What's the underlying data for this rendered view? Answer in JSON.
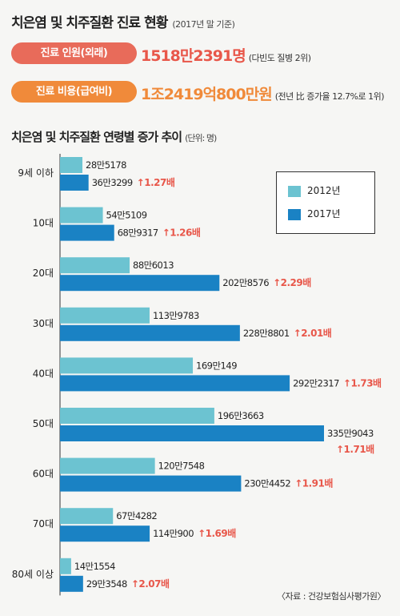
{
  "header": {
    "title": "치은염 및 치주질환 진료 현황",
    "title_note": "(2017년 말 기준)"
  },
  "stats": [
    {
      "label": "진료 인원(외래)",
      "value": "1518만2391명",
      "note": "(다빈도 질병 2위)"
    },
    {
      "label": "진료 비용(급여비)",
      "value": "1조2419억800만원",
      "note": "(전년 比 증가율 12.7%로 1위)"
    }
  ],
  "chart_section": {
    "title": "치은염 및 치주질환 연령별 증가 추이",
    "unit": "(단위: 명)"
  },
  "colors": {
    "series_2012": "#6cc3d1",
    "series_2017": "#1a82c4",
    "growth_arrow": "#e8574a"
  },
  "chart_data": {
    "type": "bar",
    "orientation": "horizontal",
    "categories": [
      "9세 이하",
      "10대",
      "20대",
      "30대",
      "40대",
      "50대",
      "60대",
      "70대",
      "80세 이상"
    ],
    "series": [
      {
        "name": "2012년",
        "values": [
          285178,
          545109,
          886013,
          1139783,
          1690149,
          1963663,
          1207548,
          674282,
          141554
        ],
        "labels": [
          "28만5178",
          "54만5109",
          "88만6013",
          "113만9783",
          "169만149",
          "196만3663",
          "120만7548",
          "67만4282",
          "14만1554"
        ]
      },
      {
        "name": "2017년",
        "values": [
          363299,
          689317,
          2028576,
          2288801,
          2922317,
          3359043,
          2304452,
          1140900,
          293548
        ],
        "labels": [
          "36만3299",
          "68만9317",
          "202만8576",
          "228만8801",
          "292만2317",
          "335만9043",
          "230만4452",
          "114만900",
          "29만3548"
        ]
      }
    ],
    "growth": [
      "1.27배",
      "1.26배",
      "2.29배",
      "2.01배",
      "1.73배",
      "1.71배",
      "1.91배",
      "1.69배",
      "2.07배"
    ],
    "legend": [
      "2012년",
      "2017년"
    ],
    "legend_position": "top-right"
  },
  "source": "〈자료 : 건강보험심사평가원〉"
}
